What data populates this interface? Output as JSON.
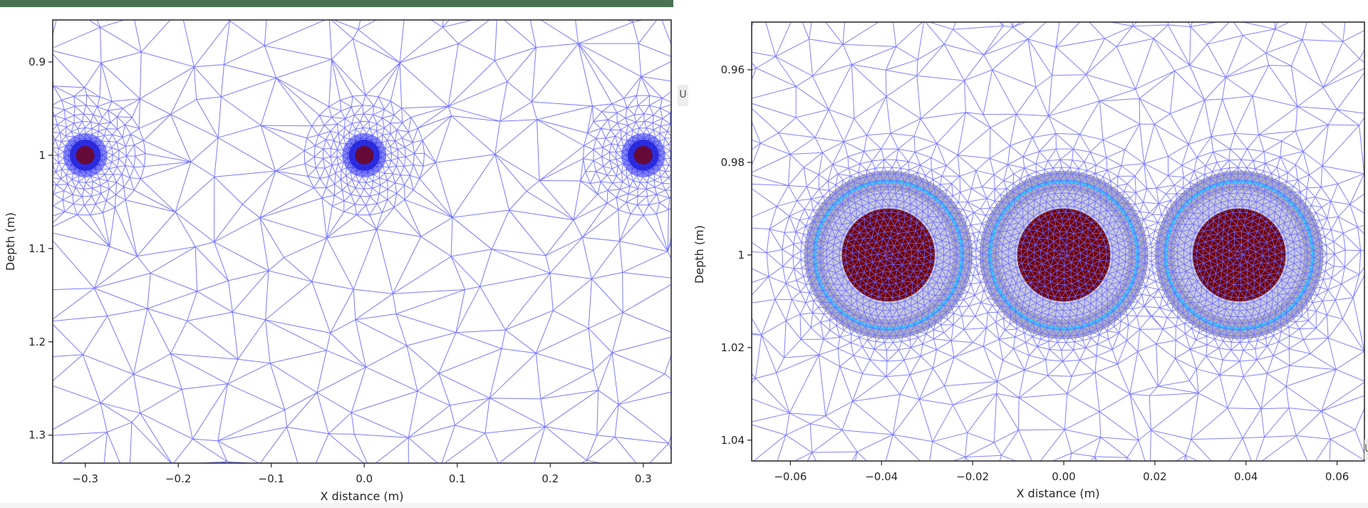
{
  "window": {
    "accent_bar_color": "#4a7150",
    "u_button_label": "U"
  },
  "chart_data": [
    {
      "type": "mesh",
      "title": "",
      "xlabel": "X distance (m)",
      "ylabel": "Depth (m)",
      "xlim": [
        -0.335,
        0.33
      ],
      "ylim": [
        1.33,
        0.855
      ],
      "y_inverted": true,
      "xticks": [
        -0.3,
        -0.2,
        -0.1,
        0.0,
        0.1,
        0.2,
        0.3
      ],
      "xtick_labels": [
        "−0.3",
        "−0.2",
        "−0.1",
        "0.0",
        "0.1",
        "0.2",
        "0.3"
      ],
      "yticks": [
        0.9,
        1.0,
        1.1,
        1.2,
        1.3
      ],
      "ytick_labels": [
        "0.9",
        "1",
        "1.1",
        "1.2",
        "1.3"
      ],
      "grid": false,
      "mesh_color": "#6a6aff",
      "cables": [
        {
          "x": -0.3,
          "y": 1.0
        },
        {
          "x": 0.0,
          "y": 1.0
        },
        {
          "x": 0.3,
          "y": 1.0
        }
      ],
      "cable_core_color": "#7a0000",
      "cable_refined_color": "#2a2aee"
    },
    {
      "type": "mesh",
      "title": "",
      "xlabel": "X distance (m)",
      "ylabel": "Depth (m)",
      "xlim": [
        -0.0685,
        0.066
      ],
      "ylim": [
        1.0445,
        0.9497
      ],
      "y_inverted": true,
      "xticks": [
        -0.06,
        -0.04,
        -0.02,
        0.0,
        0.02,
        0.04,
        0.06
      ],
      "xtick_labels": [
        "−0.06",
        "−0.04",
        "−0.02",
        "0.00",
        "0.02",
        "0.04",
        "0.06"
      ],
      "yticks": [
        0.96,
        0.98,
        1.0,
        1.02,
        1.04
      ],
      "ytick_labels": [
        "0.96",
        "0.98",
        "1",
        "1.02",
        "1.04"
      ],
      "grid": false,
      "mesh_color": "#6a6aff",
      "cables": [
        {
          "x": -0.0385,
          "y": 1.0
        },
        {
          "x": 0.0,
          "y": 1.0
        },
        {
          "x": 0.0385,
          "y": 1.0
        }
      ],
      "cable_layers": {
        "core_radius": 0.0102,
        "insulation_radius": 0.0142,
        "screen_radius": 0.0162,
        "sheath_radius": 0.0185,
        "core_color": "#720000",
        "insulation_color": "#c9c9de",
        "screen_color": "#3fc3ff",
        "sheath_color": "#a9a9c6"
      }
    }
  ],
  "plots": {
    "left": {
      "xlabel": "X distance (m)",
      "ylabel": "Depth (m)"
    },
    "right": {
      "xlabel": "X distance (m)",
      "ylabel": "Depth (m)"
    }
  }
}
